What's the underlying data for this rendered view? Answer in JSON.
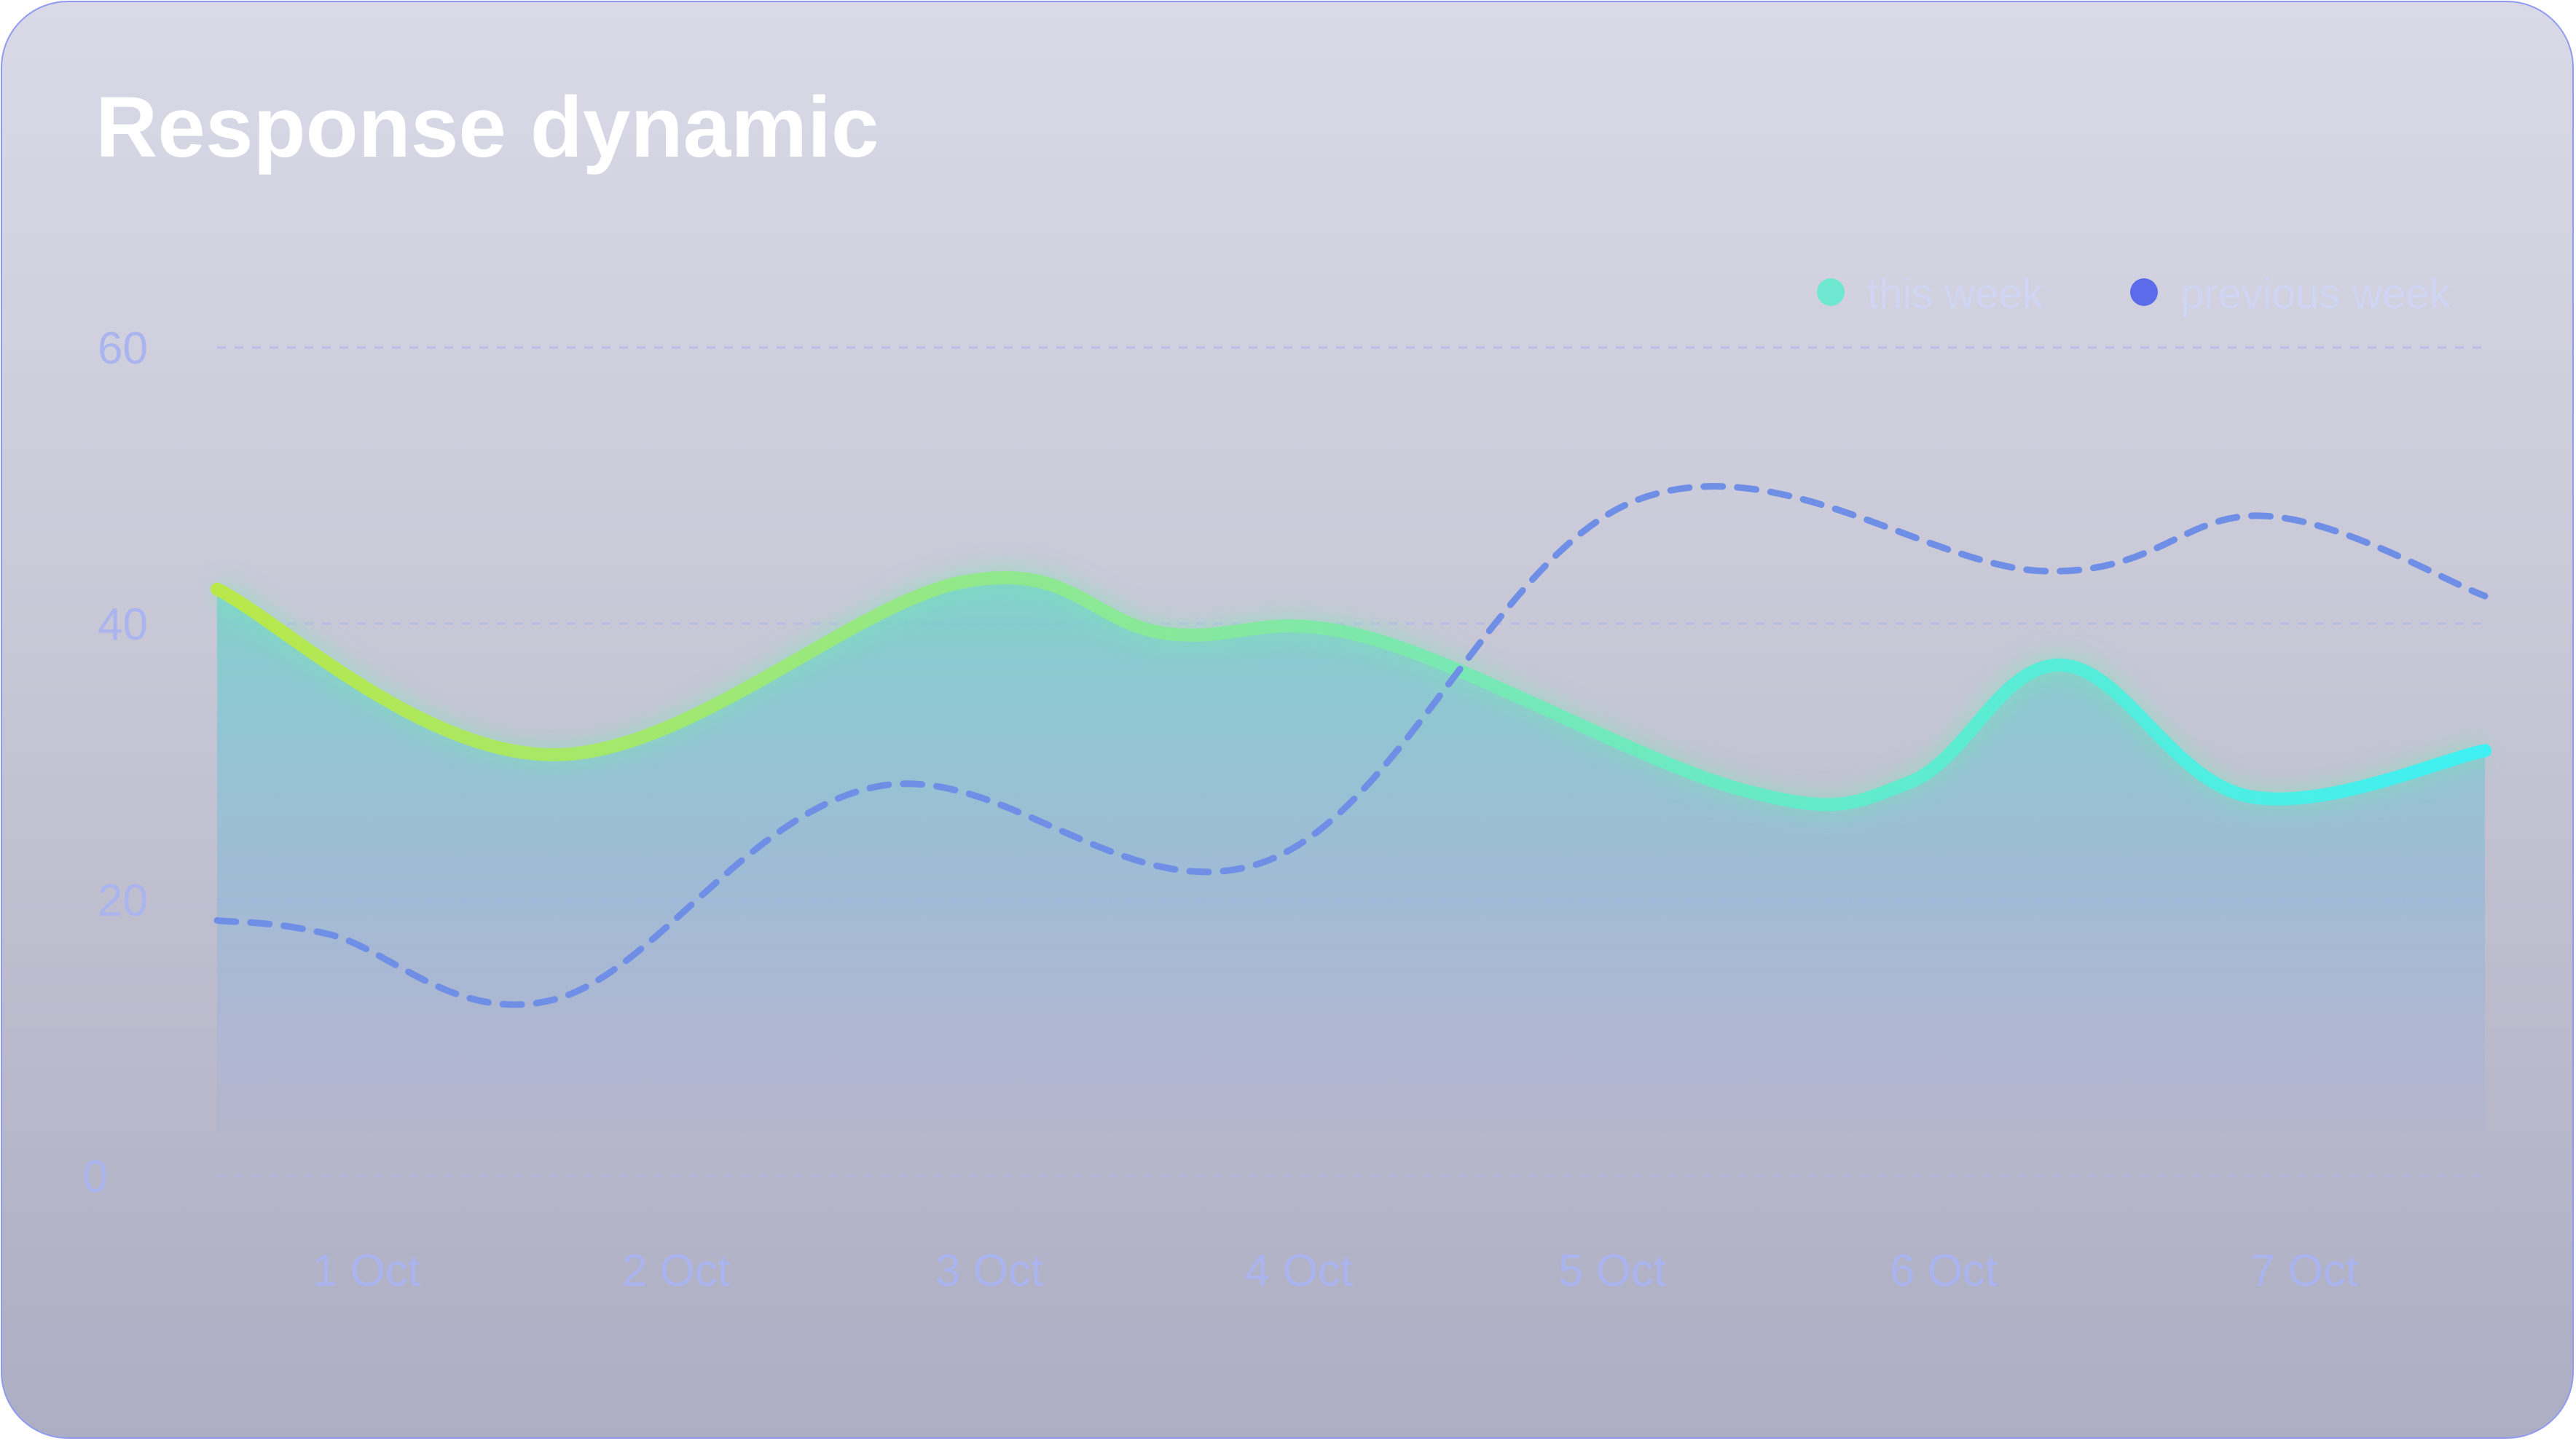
{
  "title": "Response dynamic",
  "colors": {
    "this_week_start": "#b9e84a",
    "this_week_mid": "#78e8b4",
    "this_week_end": "#3ff0f3",
    "previous_week": "#6f8ee6",
    "legend_this_week_dot": "#6ee8d0",
    "legend_previous_week_dot": "#5b6bea",
    "axis_text": "#aab4ef",
    "grid": "#b3b8ea"
  },
  "chart_data": {
    "type": "line",
    "x_labels": [
      "1 Oct",
      "2 Oct",
      "3 Oct",
      "4 Oct",
      "5 Oct",
      "6 Oct",
      "7 Oct"
    ],
    "y_ticks": [
      0,
      20,
      40,
      60
    ],
    "ylim": [
      0,
      60
    ],
    "grid": true,
    "legend_position": "top-right",
    "series": [
      {
        "name": "this week",
        "style": "solid",
        "filled_area": true,
        "points": [
          [
            0,
            42.5
          ],
          [
            1.0,
            30.5
          ],
          [
            2.2,
            43.0
          ],
          [
            2.8,
            39.3
          ],
          [
            3.4,
            39.0
          ],
          [
            4.5,
            28.0
          ],
          [
            5.0,
            28.5
          ],
          [
            5.45,
            37.0
          ],
          [
            6.0,
            27.5
          ],
          [
            6.7,
            30.8
          ]
        ]
      },
      {
        "name": "previous week",
        "style": "dashed",
        "filled_area": false,
        "points": [
          [
            0,
            18.5
          ],
          [
            0.33,
            17.5
          ],
          [
            1.0,
            12.8
          ],
          [
            1.95,
            28.2
          ],
          [
            3.1,
            22.8
          ],
          [
            4.2,
            49.0
          ],
          [
            5.4,
            43.8
          ],
          [
            6.05,
            47.8
          ],
          [
            6.7,
            42.0
          ]
        ]
      }
    ]
  }
}
